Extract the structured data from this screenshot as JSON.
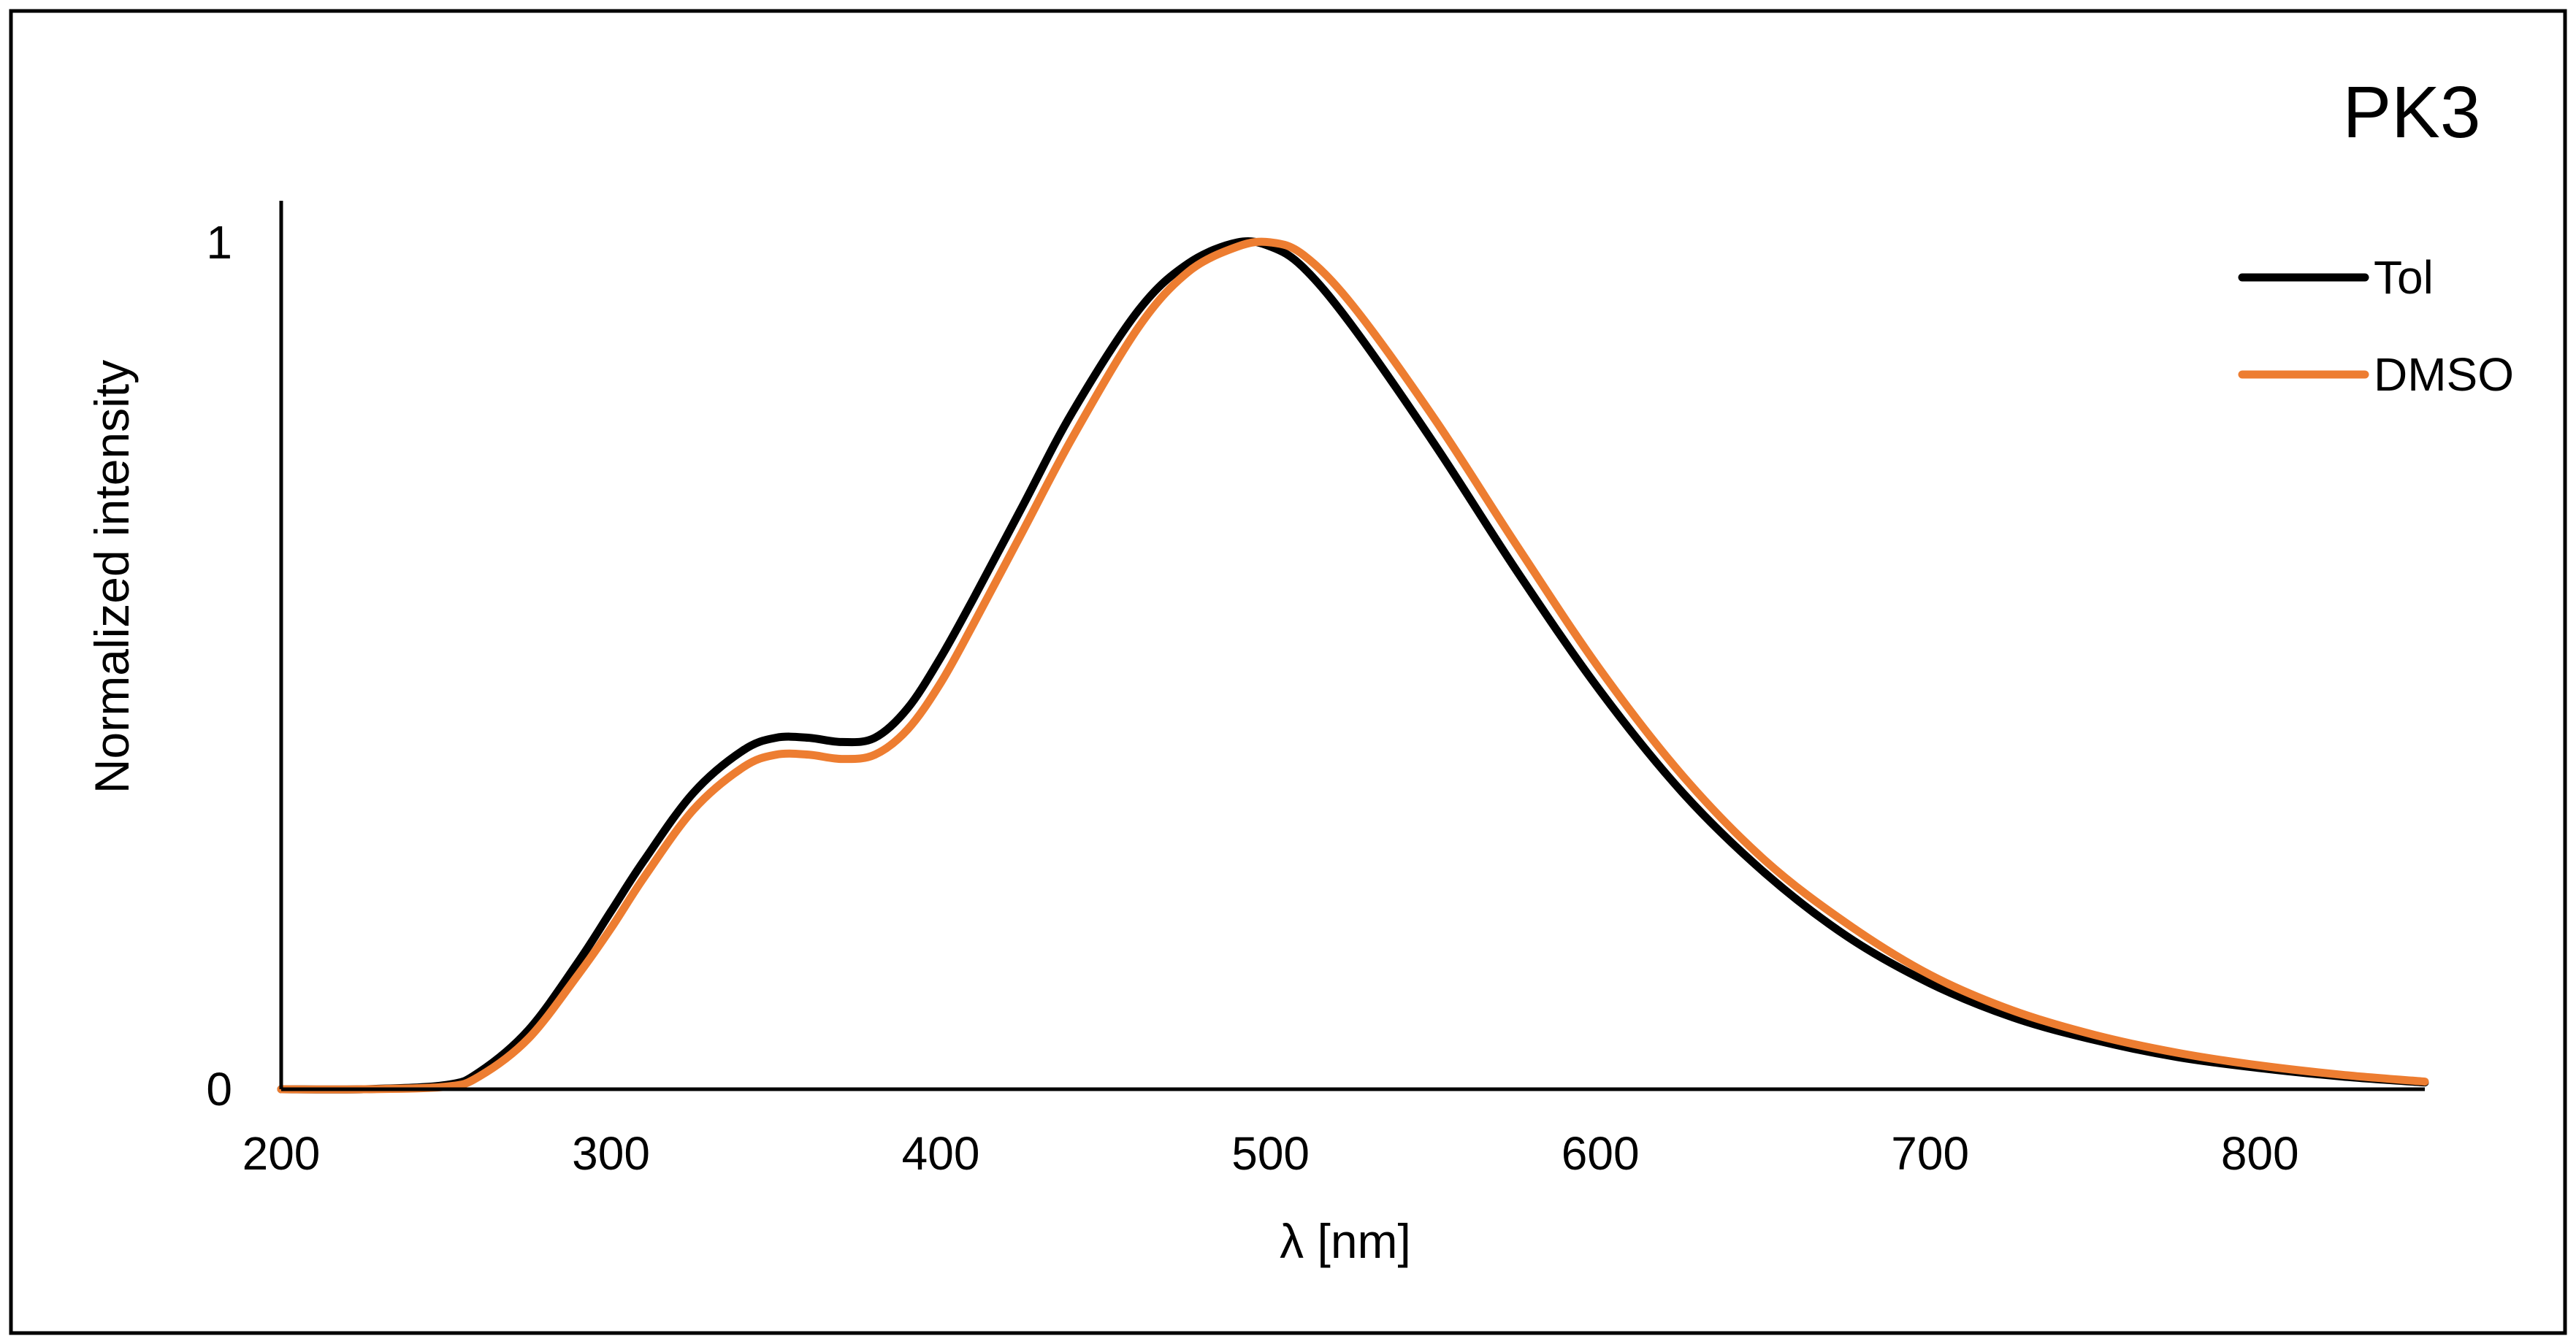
{
  "chart_data": {
    "type": "line",
    "title": "PK3",
    "xlabel": "λ [nm]",
    "ylabel": "Normalized intensity",
    "xlim": [
      200,
      850
    ],
    "ylim": [
      0,
      1
    ],
    "x_ticks": [
      "200",
      "300",
      "400",
      "500",
      "600",
      "700",
      "800"
    ],
    "y_ticks": [
      "0",
      "1"
    ],
    "grid": false,
    "legend_position": "top-right",
    "x": [
      200,
      225,
      250,
      260,
      275,
      290,
      300,
      310,
      325,
      340,
      350,
      360,
      370,
      380,
      390,
      400,
      410,
      425,
      440,
      460,
      475,
      490,
      500,
      510,
      525,
      550,
      575,
      600,
      625,
      650,
      675,
      700,
      725,
      750,
      775,
      800,
      825,
      850
    ],
    "series": [
      {
        "name": "Tol",
        "color": "#000000",
        "values": [
          0,
          0,
          0.005,
          0.02,
          0.07,
          0.15,
          0.21,
          0.27,
          0.35,
          0.4,
          0.415,
          0.415,
          0.41,
          0.415,
          0.45,
          0.51,
          0.58,
          0.69,
          0.8,
          0.92,
          0.975,
          1.0,
          0.995,
          0.97,
          0.9,
          0.76,
          0.61,
          0.47,
          0.35,
          0.255,
          0.18,
          0.125,
          0.085,
          0.058,
          0.038,
          0.025,
          0.015,
          0.008
        ]
      },
      {
        "name": "DMSO",
        "color": "#ED7D31",
        "values": [
          0,
          0,
          0.003,
          0.015,
          0.06,
          0.135,
          0.19,
          0.25,
          0.33,
          0.38,
          0.395,
          0.395,
          0.39,
          0.395,
          0.425,
          0.48,
          0.55,
          0.66,
          0.77,
          0.9,
          0.965,
          0.995,
          1.0,
          0.985,
          0.925,
          0.79,
          0.64,
          0.495,
          0.37,
          0.27,
          0.195,
          0.135,
          0.093,
          0.064,
          0.043,
          0.028,
          0.017,
          0.009
        ]
      }
    ]
  }
}
